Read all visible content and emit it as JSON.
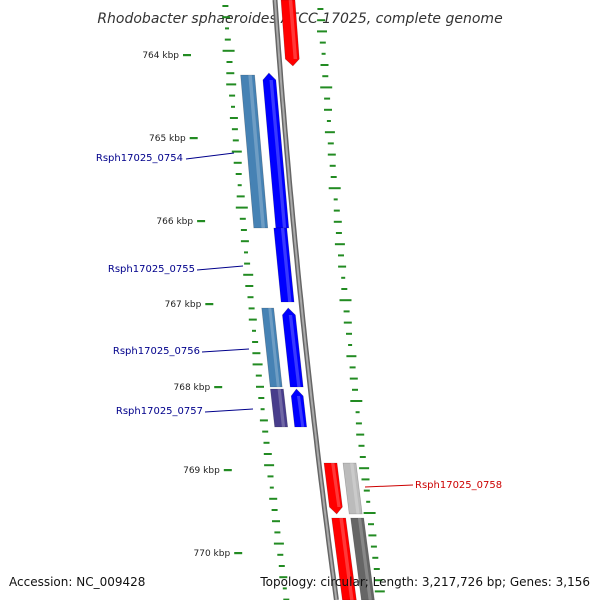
{
  "title": "Rhodobacter sphaeroides ATCC 17025, complete genome",
  "ticks": [
    {
      "label": "764 kbp"
    },
    {
      "label": "765 kbp"
    },
    {
      "label": "766 kbp"
    },
    {
      "label": "767 kbp"
    },
    {
      "label": "768 kbp"
    },
    {
      "label": "769 kbp"
    },
    {
      "label": "770 kbp"
    }
  ],
  "genes": [
    {
      "label": "Rsph17025_0754",
      "color": "#00008b"
    },
    {
      "label": "Rsph17025_0755",
      "color": "#00008b"
    },
    {
      "label": "Rsph17025_0756",
      "color": "#00008b"
    },
    {
      "label": "Rsph17025_0757",
      "color": "#00008b"
    },
    {
      "label": "Rsph17025_0758",
      "color": "#cc0000"
    }
  ],
  "colors": {
    "forward_cds": "#0000ff",
    "forward_feature": "#4682b4",
    "forward_feature_dark": "#483d8b",
    "reverse_cds": "#ff0000",
    "reverse_feature": "#bbbbbb",
    "reverse_feature_dark": "#666666",
    "backbone": "#888888",
    "dots": "#228b22"
  },
  "footer": {
    "accession": "Accession: NC_009428",
    "topology": "Topology: circular; Length: 3,217,726 bp; Genes: 3,156"
  }
}
